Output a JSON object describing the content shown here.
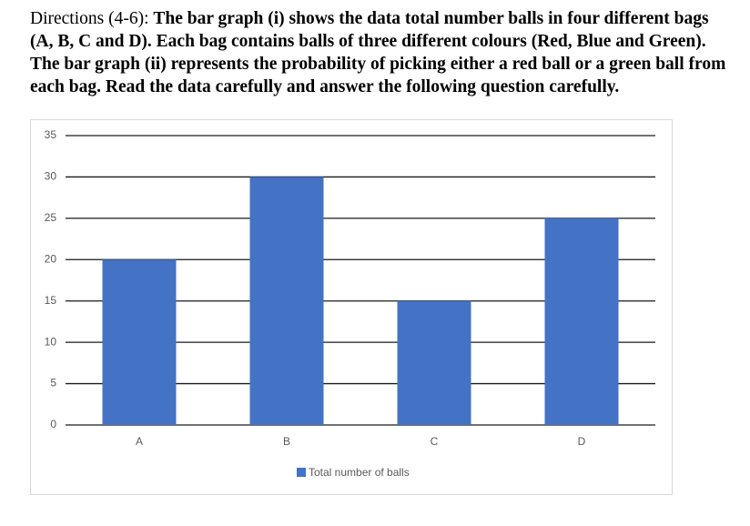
{
  "directions": {
    "label": "Directions (4-6):",
    "text": "The bar graph (i) shows the data total number balls in four different bags (A, B, C and D). Each bag contains balls of three different colours (Red, Blue and Green). The bar graph (ii) represents the probability of picking either a red ball or a green ball from each bag. Read the data carefully and answer the following question carefully."
  },
  "chart_data": {
    "type": "bar",
    "categories": [
      "A",
      "B",
      "C",
      "D"
    ],
    "series": [
      {
        "name": "Total number of balls",
        "color": "#4472c4",
        "values": [
          20,
          30,
          15,
          25
        ]
      }
    ],
    "ylim": [
      0,
      35
    ],
    "yticks": [
      0,
      5,
      10,
      15,
      20,
      25,
      30,
      35
    ],
    "grid": true,
    "legend": "bottom"
  }
}
